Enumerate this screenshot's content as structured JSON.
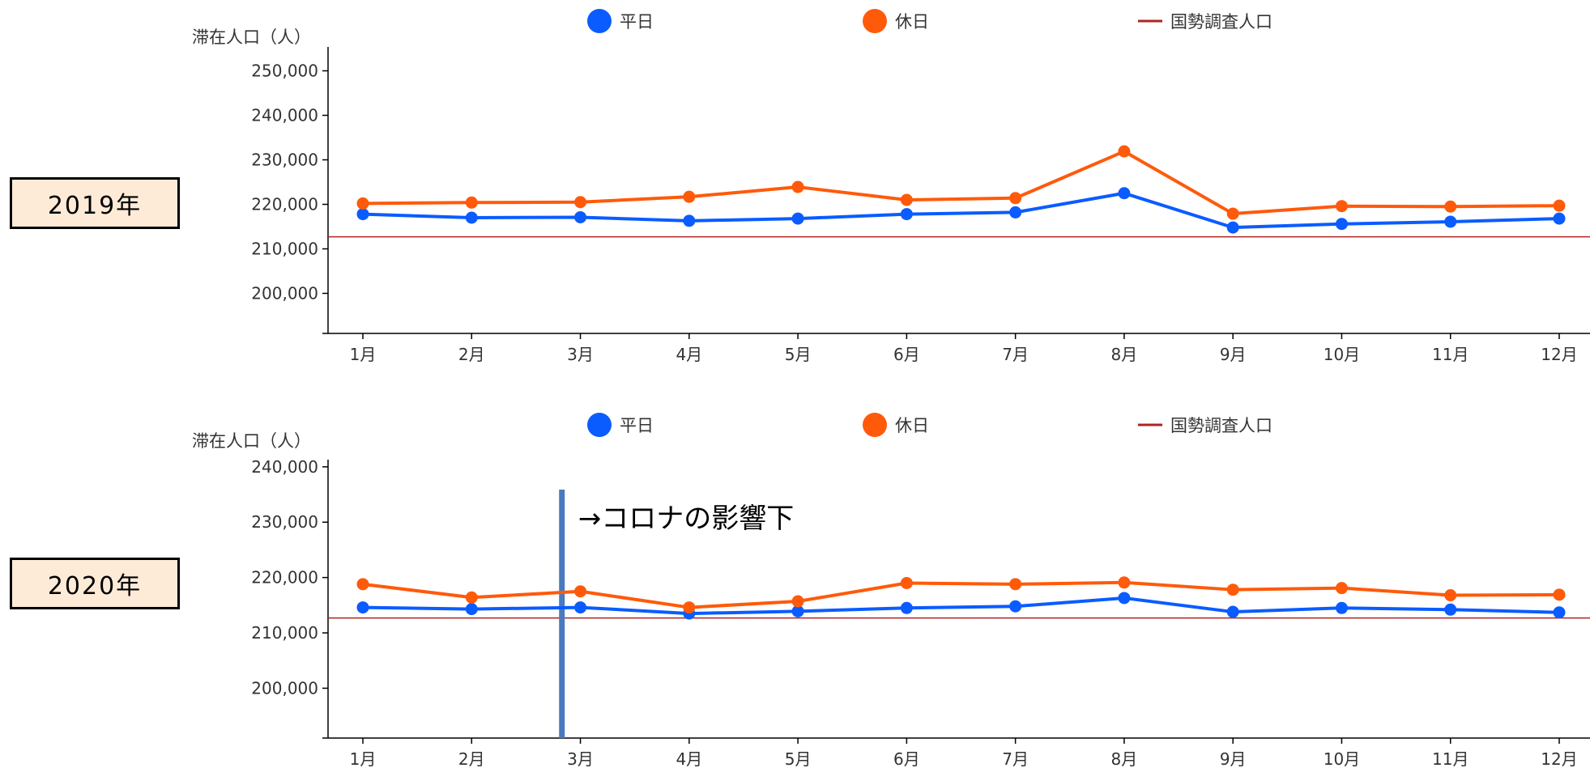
{
  "chart_data": [
    {
      "type": "line",
      "panel_label": "2019年",
      "ylabel": "滞在人口（人）",
      "categories": [
        "1月",
        "2月",
        "3月",
        "4月",
        "5月",
        "6月",
        "7月",
        "8月",
        "9月",
        "10月",
        "11月",
        "12月"
      ],
      "ylim": [
        191000,
        255000
      ],
      "yticks": [
        200000,
        210000,
        220000,
        230000,
        240000,
        250000
      ],
      "ytick_labels": [
        "200,000",
        "210,000",
        "220,000",
        "230,000",
        "240,000",
        "250,000"
      ],
      "series": [
        {
          "name": "平日",
          "color": "#0a5cff",
          "values": [
            217800,
            217000,
            217100,
            216300,
            216800,
            217800,
            218200,
            222500,
            214800,
            215600,
            216100,
            216800
          ]
        },
        {
          "name": "休日",
          "color": "#ff5a0a",
          "values": [
            220200,
            220400,
            220500,
            221700,
            223900,
            221000,
            221400,
            231900,
            217900,
            219600,
            219500,
            219700
          ]
        }
      ],
      "reference_line": {
        "name": "国勢調査人口",
        "color": "#b22222",
        "value": 212700
      },
      "grid": false,
      "legend": "top"
    },
    {
      "type": "line",
      "panel_label": "2020年",
      "ylabel": "滞在人口（人）",
      "categories": [
        "1月",
        "2月",
        "3月",
        "4月",
        "5月",
        "6月",
        "7月",
        "8月",
        "9月",
        "10月",
        "11月",
        "12月"
      ],
      "ylim": [
        191000,
        241000
      ],
      "yticks": [
        200000,
        210000,
        220000,
        230000,
        240000
      ],
      "ytick_labels": [
        "200,000",
        "210,000",
        "220,000",
        "230,000",
        "240,000"
      ],
      "series": [
        {
          "name": "平日",
          "color": "#0a5cff",
          "values": [
            214600,
            214300,
            214600,
            213500,
            213900,
            214500,
            214800,
            216300,
            213800,
            214500,
            214200,
            213700
          ]
        },
        {
          "name": "休日",
          "color": "#ff5a0a",
          "values": [
            218800,
            216400,
            217500,
            214600,
            215700,
            219000,
            218800,
            219100,
            217800,
            218100,
            216800,
            216900
          ]
        }
      ],
      "reference_line": {
        "name": "国勢調査人口",
        "color": "#b22222",
        "value": 212700
      },
      "annotation": {
        "text": "→コロナの影響下",
        "x_month": 2.83,
        "color": "#4a7abf"
      },
      "grid": false,
      "legend": "top"
    }
  ]
}
